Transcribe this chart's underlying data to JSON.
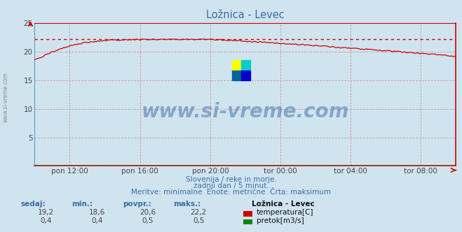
{
  "title": "Ložnica - Levec",
  "background_color": "#d0e4f0",
  "plot_bg_color": "#d0e4f0",
  "x_labels": [
    "pon 12:00",
    "pon 16:00",
    "pon 20:00",
    "tor 00:00",
    "tor 04:00",
    "tor 08:00"
  ],
  "x_ticks_norm": [
    0.0833,
    0.25,
    0.4167,
    0.5833,
    0.75,
    0.9167
  ],
  "ylim": [
    0,
    25
  ],
  "yticks": [
    5,
    10,
    15,
    20,
    25
  ],
  "yticklabels": [
    "5",
    "10",
    "15",
    "20",
    "25"
  ],
  "temp_color": "#cc0000",
  "flow_color": "#008800",
  "flow_line_color": "#aaaaff",
  "max_line_color": "#cc0000",
  "grid_color_v": "#cc9999",
  "grid_color_h": "#cc9999",
  "axis_color": "#cc0000",
  "left_axis_color": "#6699bb",
  "temp_max": 22.2,
  "temp_min": 18.6,
  "temp_avg": 20.6,
  "temp_now": 19.2,
  "flow_max": 0.5,
  "flow_min": 0.4,
  "flow_avg": 0.5,
  "flow_now": 0.4,
  "subtitle1": "Slovenija / reke in morje.",
  "subtitle2": "zadnji dan / 5 minut.",
  "subtitle3": "Meritve: minimalne  Enote: metrične  Črta: maksimum",
  "legend_title": "Ložnica - Levec",
  "label_sedaj": "sedaj:",
  "label_min": "min.:",
  "label_povpr": "povpr.:",
  "label_maks": "maks.:",
  "label_temp": "temperatura[C]",
  "label_flow": "pretok[m3/s]",
  "watermark": "www.si-vreme.com",
  "n_points": 288
}
